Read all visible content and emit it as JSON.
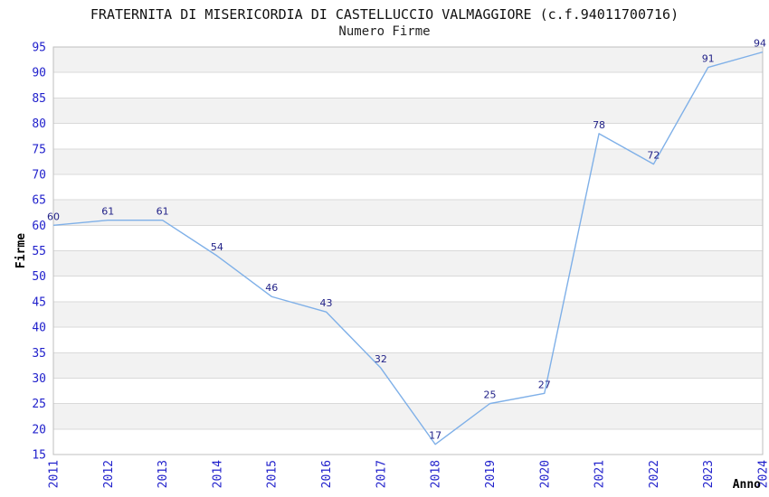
{
  "chart_data": {
    "type": "line",
    "title": "FRATERNITA DI MISERICORDIA DI CASTELLUCCIO VALMAGGIORE (c.f.94011700716)",
    "subtitle": "Numero Firme",
    "xlabel": "Anno",
    "ylabel": "Firme",
    "x": [
      "2011",
      "2012",
      "2013",
      "2014",
      "2015",
      "2016",
      "2017",
      "2018",
      "2019",
      "2020",
      "2021",
      "2022",
      "2023",
      "2024"
    ],
    "series": [
      {
        "name": "Numero Firme",
        "values": [
          60,
          61,
          61,
          54,
          46,
          43,
          32,
          17,
          25,
          27,
          78,
          72,
          91,
          94
        ]
      }
    ],
    "ylim": [
      15,
      95
    ],
    "ytick_step": 5,
    "y_ticks": [
      15,
      20,
      25,
      30,
      35,
      40,
      45,
      50,
      55,
      60,
      65,
      70,
      75,
      80,
      85,
      90,
      95
    ],
    "grid": "horizontal",
    "bands": "alternating",
    "legend_position": "none",
    "point_labels_visible": true,
    "colors": {
      "line": "#7fb0e8",
      "point_label": "#222288",
      "tick_label": "#2222cc",
      "axis_title": "#000000",
      "title": "#111111",
      "band": "#f2f2f2",
      "gridline": "#d9d9d9",
      "border": "#bfbfbf",
      "background": "#ffffff"
    }
  }
}
